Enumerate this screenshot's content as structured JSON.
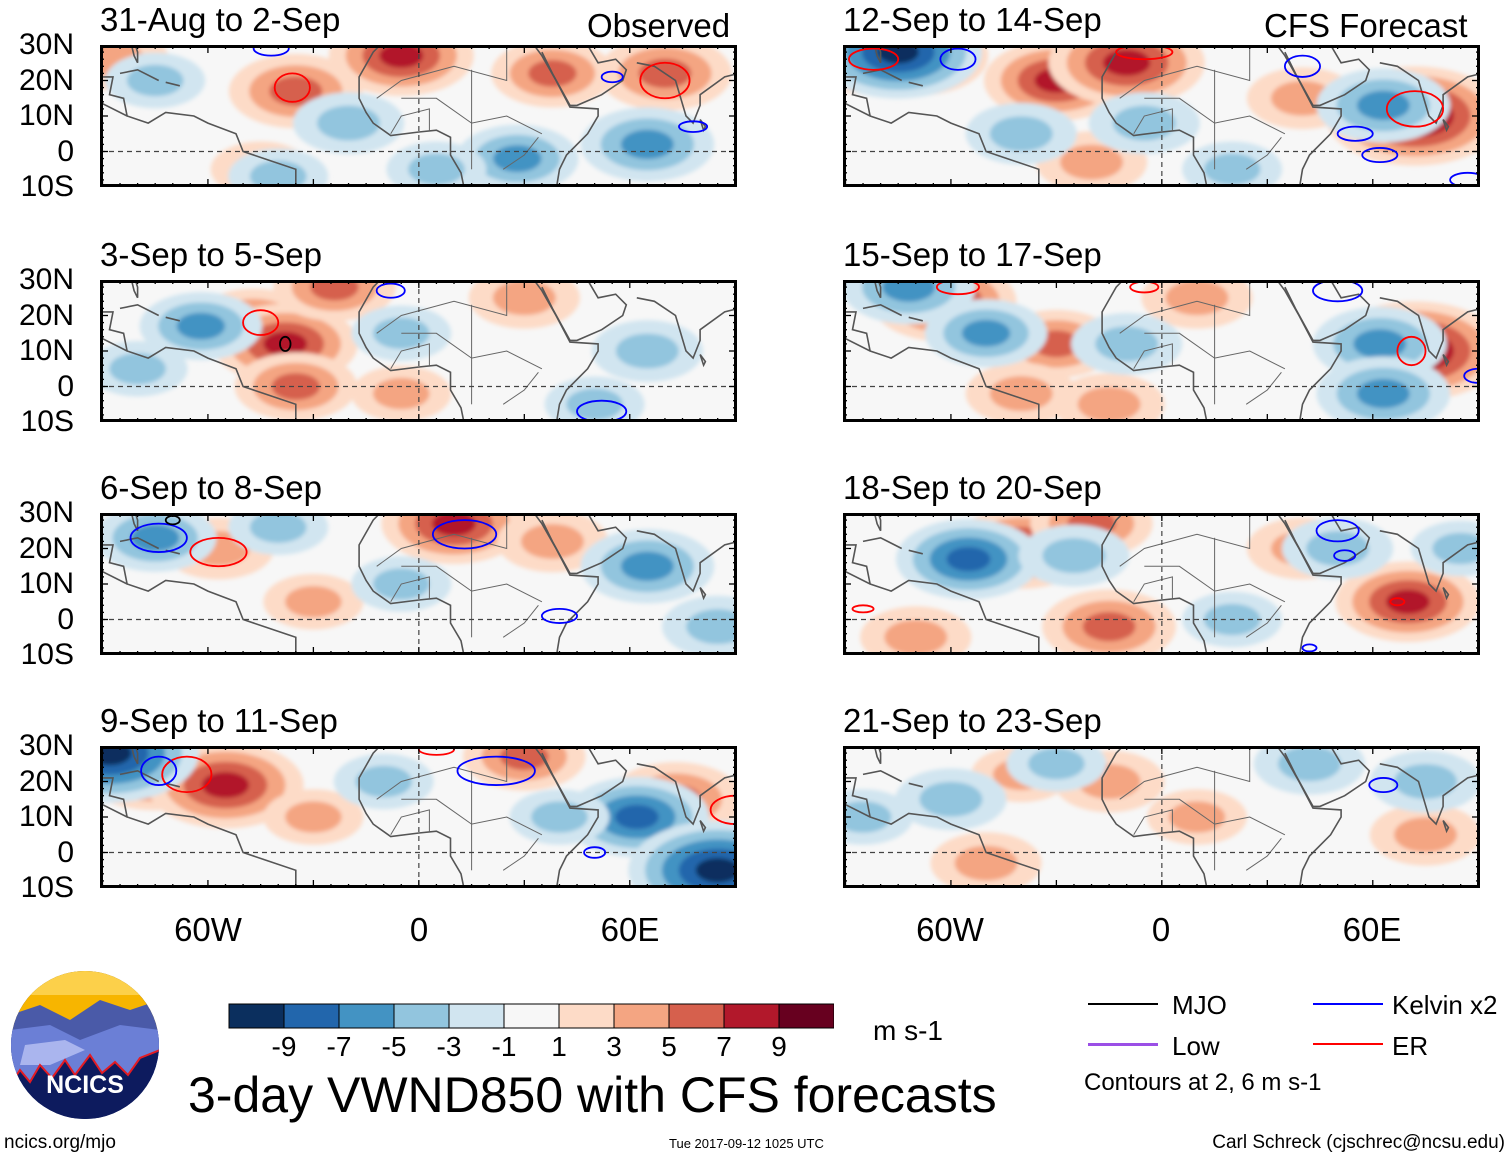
{
  "labels": {
    "observed": "Observed",
    "forecast": "CFS Forecast"
  },
  "lat_labels": [
    "30N",
    "20N",
    "10N",
    "0",
    "10S"
  ],
  "lon_labels": [
    "60W",
    "0",
    "60E"
  ],
  "colors": {
    "bins": [
      "#0b2f5e",
      "#2266ac",
      "#4393c3",
      "#92c5de",
      "#d1e5f0",
      "#f7f7f7",
      "#fddbc7",
      "#f4a582",
      "#d6604d",
      "#b2182b",
      "#67001f"
    ],
    "mjo": "#000000",
    "low": "#9b4fe6",
    "kelvin": "#0000ff",
    "er": "#ff0000"
  },
  "chart_data": [
    {
      "type": "heatmap",
      "title": "31-Aug to 2-Sep",
      "lon_range": [
        -90,
        90
      ],
      "lat_range": [
        -10,
        30
      ],
      "features": [
        [
          -35,
          17,
          5
        ],
        [
          -5,
          27,
          6
        ],
        [
          38,
          22,
          4
        ],
        [
          70,
          22,
          5
        ],
        [
          -87,
          26,
          3
        ],
        [
          -45,
          -5,
          2
        ],
        [
          65,
          2,
          -5
        ],
        [
          -20,
          8,
          -3
        ],
        [
          -75,
          20,
          -2
        ],
        [
          28,
          -2,
          -4
        ],
        [
          -40,
          -7,
          -2
        ],
        [
          5,
          -5,
          -2
        ]
      ],
      "contours": [
        [
          "er",
          -36,
          18,
          5,
          4
        ],
        [
          "er",
          70,
          20,
          7,
          5
        ],
        [
          "kelvin",
          55,
          21,
          3,
          1.5
        ],
        [
          "kelvin",
          78,
          7,
          4,
          1.5
        ],
        [
          "kelvin",
          -42,
          29,
          5,
          2
        ]
      ]
    },
    {
      "type": "heatmap",
      "title": "3-Sep to 5-Sep",
      "lon_range": [
        -90,
        90
      ],
      "lat_range": [
        -10,
        30
      ],
      "features": [
        [
          -47,
          18,
          4
        ],
        [
          -38,
          12,
          6
        ],
        [
          -35,
          0,
          4
        ],
        [
          -24,
          28,
          4
        ],
        [
          30,
          25,
          3
        ],
        [
          -5,
          -2,
          2
        ],
        [
          -62,
          17,
          -4
        ],
        [
          65,
          10,
          -3
        ],
        [
          -5,
          15,
          -2
        ],
        [
          -80,
          5,
          -2
        ],
        [
          50,
          -5,
          -2
        ]
      ],
      "contours": [
        [
          "er",
          -45,
          18,
          5,
          3.5
        ],
        [
          "mjo",
          -38,
          12,
          1.5,
          2
        ],
        [
          "kelvin",
          52,
          -7,
          7,
          3
        ],
        [
          "kelvin",
          -8,
          27,
          4,
          2
        ]
      ]
    },
    {
      "type": "heatmap",
      "title": "6-Sep to 8-Sep",
      "lon_range": [
        -90,
        90
      ],
      "lat_range": [
        -10,
        30
      ],
      "features": [
        [
          -57,
          20,
          3
        ],
        [
          10,
          27,
          6
        ],
        [
          38,
          22,
          3
        ],
        [
          -30,
          5,
          2
        ],
        [
          -75,
          23,
          -4
        ],
        [
          65,
          15,
          -5
        ],
        [
          -5,
          10,
          -2
        ],
        [
          85,
          -2,
          -3
        ],
        [
          -40,
          26,
          -2
        ]
      ],
      "contours": [
        [
          "er",
          -57,
          19,
          8,
          4
        ],
        [
          "kelvin",
          -74,
          23,
          8,
          4
        ],
        [
          "kelvin",
          13,
          24,
          9,
          4
        ],
        [
          "kelvin",
          40,
          1,
          5,
          2
        ],
        [
          "mjo",
          -70,
          28,
          2,
          1.2
        ]
      ]
    },
    {
      "type": "heatmap",
      "title": "9-Sep to 11-Sep",
      "lon_range": [
        -90,
        90
      ],
      "lat_range": [
        -10,
        30
      ],
      "features": [
        [
          -75,
          25,
          8
        ],
        [
          -55,
          19,
          7
        ],
        [
          73,
          15,
          5
        ],
        [
          30,
          27,
          4
        ],
        [
          -30,
          10,
          2
        ],
        [
          -88,
          28,
          -9
        ],
        [
          62,
          10,
          -6
        ],
        [
          85,
          -5,
          -9
        ],
        [
          -10,
          20,
          -2
        ],
        [
          40,
          10,
          -2
        ]
      ],
      "contours": [
        [
          "er",
          -66,
          22,
          7,
          5
        ],
        [
          "er",
          90,
          12,
          7,
          4
        ],
        [
          "er",
          5,
          29,
          5,
          1.5
        ],
        [
          "kelvin",
          22,
          23,
          11,
          4
        ],
        [
          "kelvin",
          -74,
          23,
          5,
          4
        ],
        [
          "kelvin",
          50,
          0,
          3,
          1.5
        ]
      ]
    }
  ],
  "chart_data_forecast": [
    {
      "type": "heatmap",
      "title": "12-Sep to 14-Sep",
      "lon_range": [
        -90,
        90
      ],
      "lat_range": [
        -10,
        30
      ],
      "features": [
        [
          -70,
          27,
          6
        ],
        [
          -30,
          20,
          6
        ],
        [
          -10,
          25,
          7
        ],
        [
          72,
          10,
          9
        ],
        [
          40,
          15,
          3
        ],
        [
          -20,
          -3,
          3
        ],
        [
          -85,
          25,
          3
        ],
        [
          -75,
          28,
          -8
        ],
        [
          63,
          13,
          -5
        ],
        [
          -40,
          5,
          -3
        ],
        [
          -5,
          8,
          -3
        ],
        [
          20,
          -5,
          -2
        ]
      ],
      "contours": [
        [
          "kelvin",
          -58,
          26,
          5,
          3
        ],
        [
          "kelvin",
          40,
          24,
          5,
          3
        ],
        [
          "kelvin",
          55,
          5,
          5,
          2
        ],
        [
          "kelvin",
          62,
          -1,
          5,
          2
        ],
        [
          "kelvin",
          87,
          -8,
          5,
          2
        ],
        [
          "er",
          72,
          12,
          8,
          5
        ],
        [
          "er",
          -82,
          26,
          7,
          3
        ],
        [
          "er",
          -5,
          28,
          8,
          2
        ]
      ]
    },
    {
      "type": "heatmap",
      "title": "15-Sep to 17-Sep",
      "lon_range": [
        -90,
        90
      ],
      "lat_range": [
        -10,
        30
      ],
      "features": [
        [
          -62,
          24,
          6
        ],
        [
          72,
          10,
          9
        ],
        [
          -30,
          12,
          4
        ],
        [
          -40,
          -2,
          3
        ],
        [
          -15,
          -5,
          3
        ],
        [
          10,
          25,
          3
        ],
        [
          -72,
          28,
          -5
        ],
        [
          62,
          12,
          -5
        ],
        [
          63,
          -2,
          -5
        ],
        [
          -50,
          15,
          -4
        ],
        [
          -10,
          12,
          -3
        ]
      ],
      "contours": [
        [
          "er",
          71,
          10,
          4,
          4
        ],
        [
          "er",
          -58,
          28,
          6,
          2
        ],
        [
          "er",
          -5,
          28,
          4,
          1.5
        ],
        [
          "kelvin",
          50,
          27,
          7,
          3
        ],
        [
          "kelvin",
          90,
          3,
          4,
          2
        ]
      ]
    },
    {
      "type": "heatmap",
      "title": "18-Sep to 20-Sep",
      "lon_range": [
        -90,
        90
      ],
      "lat_range": [
        -10,
        30
      ],
      "features": [
        [
          -40,
          20,
          6
        ],
        [
          -15,
          -2,
          5
        ],
        [
          70,
          5,
          6
        ],
        [
          -70,
          -5,
          3
        ],
        [
          -20,
          27,
          4
        ],
        [
          40,
          20,
          3
        ],
        [
          -55,
          17,
          -6
        ],
        [
          -25,
          18,
          -3
        ],
        [
          50,
          20,
          -3
        ],
        [
          85,
          20,
          -2
        ],
        [
          20,
          0,
          -2
        ]
      ],
      "contours": [
        [
          "er",
          67,
          5,
          2,
          1
        ],
        [
          "er",
          -85,
          3,
          3,
          1
        ],
        [
          "kelvin",
          50,
          25,
          6,
          3
        ],
        [
          "kelvin",
          52,
          18,
          3,
          1.5
        ],
        [
          "kelvin",
          42,
          -8,
          2,
          1
        ]
      ]
    },
    {
      "type": "heatmap",
      "title": "21-Sep to 23-Sep",
      "lon_range": [
        -90,
        90
      ],
      "lat_range": [
        -10,
        30
      ],
      "features": [
        [
          -15,
          20,
          3
        ],
        [
          -50,
          -3,
          3
        ],
        [
          75,
          5,
          3
        ],
        [
          10,
          10,
          2
        ],
        [
          -40,
          22,
          2
        ],
        [
          -60,
          15,
          -3
        ],
        [
          -30,
          25,
          -2
        ],
        [
          42,
          25,
          -3
        ],
        [
          75,
          20,
          -3
        ],
        [
          -85,
          10,
          -2
        ]
      ],
      "contours": [
        [
          "kelvin",
          63,
          19,
          4,
          2
        ]
      ]
    }
  ],
  "colorbar": {
    "ticks": [
      "-9",
      "-7",
      "-5",
      "-3",
      "-1",
      "1",
      "3",
      "5",
      "7",
      "9"
    ],
    "unit": "m s-1"
  },
  "legend": {
    "mjo": "MJO",
    "kelvin": "Kelvin x2",
    "low": "Low",
    "er": "ER",
    "note": "Contours at 2, 6 m s-1"
  },
  "title": "3-day VWND850 with CFS forecasts",
  "logo": "NCICS",
  "footer": {
    "left": "ncics.org/mjo",
    "center": "Tue 2017-09-12 1025 UTC",
    "right": "Carl Schreck (cjschrec@ncsu.edu)"
  }
}
